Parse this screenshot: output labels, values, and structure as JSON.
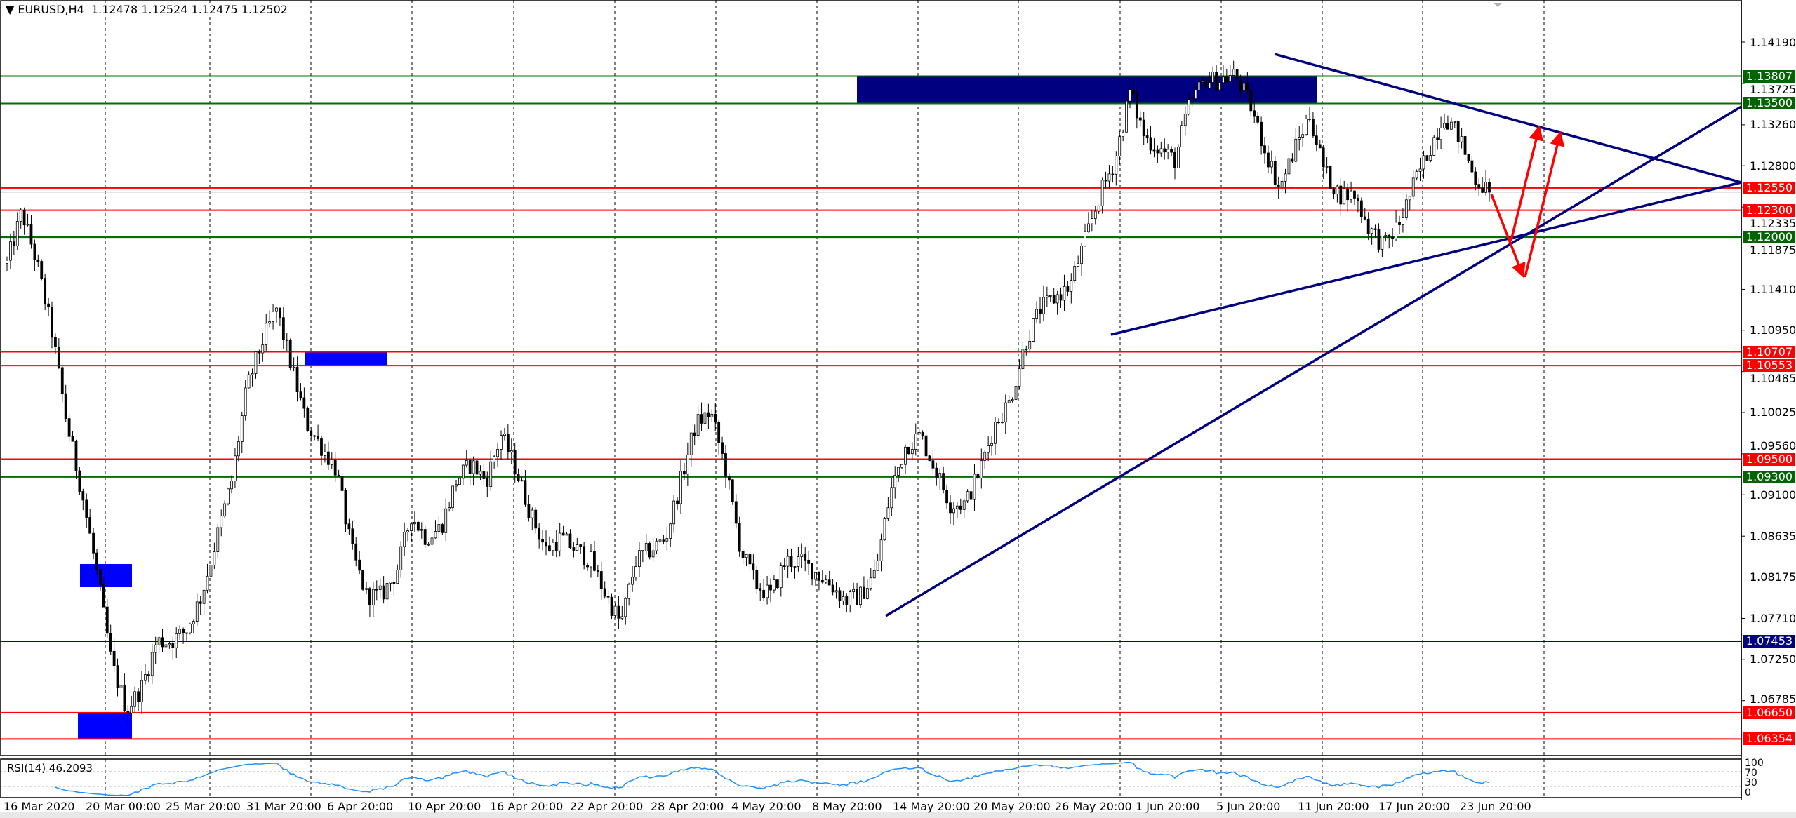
{
  "header": {
    "symbol": "EURUSD,H4",
    "open": "1.12478",
    "high": "1.12524",
    "low": "1.12475",
    "close": "1.12502"
  },
  "colors": {
    "support": "#008000",
    "resistance": "#ff0000",
    "trend": "#000080",
    "zone": "#0000ff",
    "rsi": "#1e90ff"
  },
  "chart_data": {
    "type": "candlestick",
    "symbol": "EURUSD",
    "timeframe": "H4",
    "ylim": [
      1.0612,
      1.1448
    ],
    "y_ticks": [
      "1.14190",
      "1.13725",
      "1.13260",
      "1.12800",
      "1.12335",
      "1.11875",
      "1.11410",
      "1.10950",
      "1.10485",
      "1.10025",
      "1.09560",
      "1.09100",
      "1.08635",
      "1.08175",
      "1.07710",
      "1.07250",
      "1.06785"
    ],
    "x_ticks": [
      "16 Mar 2020",
      "20 Mar 00:00",
      "25 Mar 20:00",
      "31 Mar 20:00",
      "6 Apr 20:00",
      "10 Apr 20:00",
      "16 Apr 20:00",
      "22 Apr 20:00",
      "28 Apr 20:00",
      "4 May 20:00",
      "8 May 20:00",
      "14 May 20:00",
      "20 May 20:00",
      "26 May 20:00",
      "1 Jun 20:00",
      "5 Jun 20:00",
      "11 Jun 20:00",
      "17 Jun 20:00",
      "23 Jun 20:00"
    ],
    "price_path": [
      1.11702,
      1.12281,
      1.11702,
      1.1093,
      1.099,
      1.09127,
      1.08226,
      1.07194,
      1.06681,
      1.06939,
      1.07454,
      1.07454,
      1.07582,
      1.07969,
      1.08612,
      1.09256,
      1.10286,
      1.10801,
      1.11187,
      1.10543,
      1.099,
      1.09642,
      1.09385,
      1.08484,
      1.07969,
      1.07969,
      1.08226,
      1.0887,
      1.08612,
      1.08741,
      1.09256,
      1.09449,
      1.09256,
      1.09771,
      1.09385,
      1.0887,
      1.08484,
      1.08612,
      1.08484,
      1.08355,
      1.07969,
      1.07647,
      1.08355,
      1.08484,
      1.08612,
      1.09256,
      1.099,
      1.10028,
      1.09385,
      1.08484,
      1.08097,
      1.07969,
      1.08355,
      1.08355,
      1.08226,
      1.08097,
      1.07904,
      1.07969,
      1.08226,
      1.09127,
      1.09642,
      1.09771,
      1.09385,
      1.08998,
      1.08998,
      1.09385,
      1.099,
      1.10157,
      1.10801,
      1.11187,
      1.11316,
      1.11445,
      1.1196,
      1.12474,
      1.12861,
      1.13633,
      1.13118,
      1.12989,
      1.12861,
      1.13504,
      1.13762,
      1.13762,
      1.13826,
      1.13504,
      1.12989,
      1.12539,
      1.12989,
      1.13376,
      1.12732,
      1.12474,
      1.12474,
      1.12088,
      1.11895,
      1.12153,
      1.12603,
      1.12989,
      1.13376,
      1.13118,
      1.12668,
      1.12502
    ],
    "horizontal_levels": [
      {
        "price": "1.13807",
        "kind": "support"
      },
      {
        "price": "1.13500",
        "kind": "support"
      },
      {
        "price": "1.12550",
        "kind": "resistance"
      },
      {
        "price": "1.12300",
        "kind": "resistance"
      },
      {
        "price": "1.12000",
        "kind": "support"
      },
      {
        "price": "1.10707",
        "kind": "resistance"
      },
      {
        "price": "1.10553",
        "kind": "resistance"
      },
      {
        "price": "1.09500",
        "kind": "resistance"
      },
      {
        "price": "1.09300",
        "kind": "support"
      },
      {
        "price": "1.07453",
        "kind": "trend"
      },
      {
        "price": "1.06650",
        "kind": "resistance"
      },
      {
        "price": "1.06354",
        "kind": "resistance"
      }
    ],
    "indicator": {
      "label": "RSI(14) 46.2093",
      "levels": [
        30,
        70
      ],
      "axis": [
        "100",
        "70",
        "30",
        "0"
      ],
      "value": 46.2093
    }
  }
}
